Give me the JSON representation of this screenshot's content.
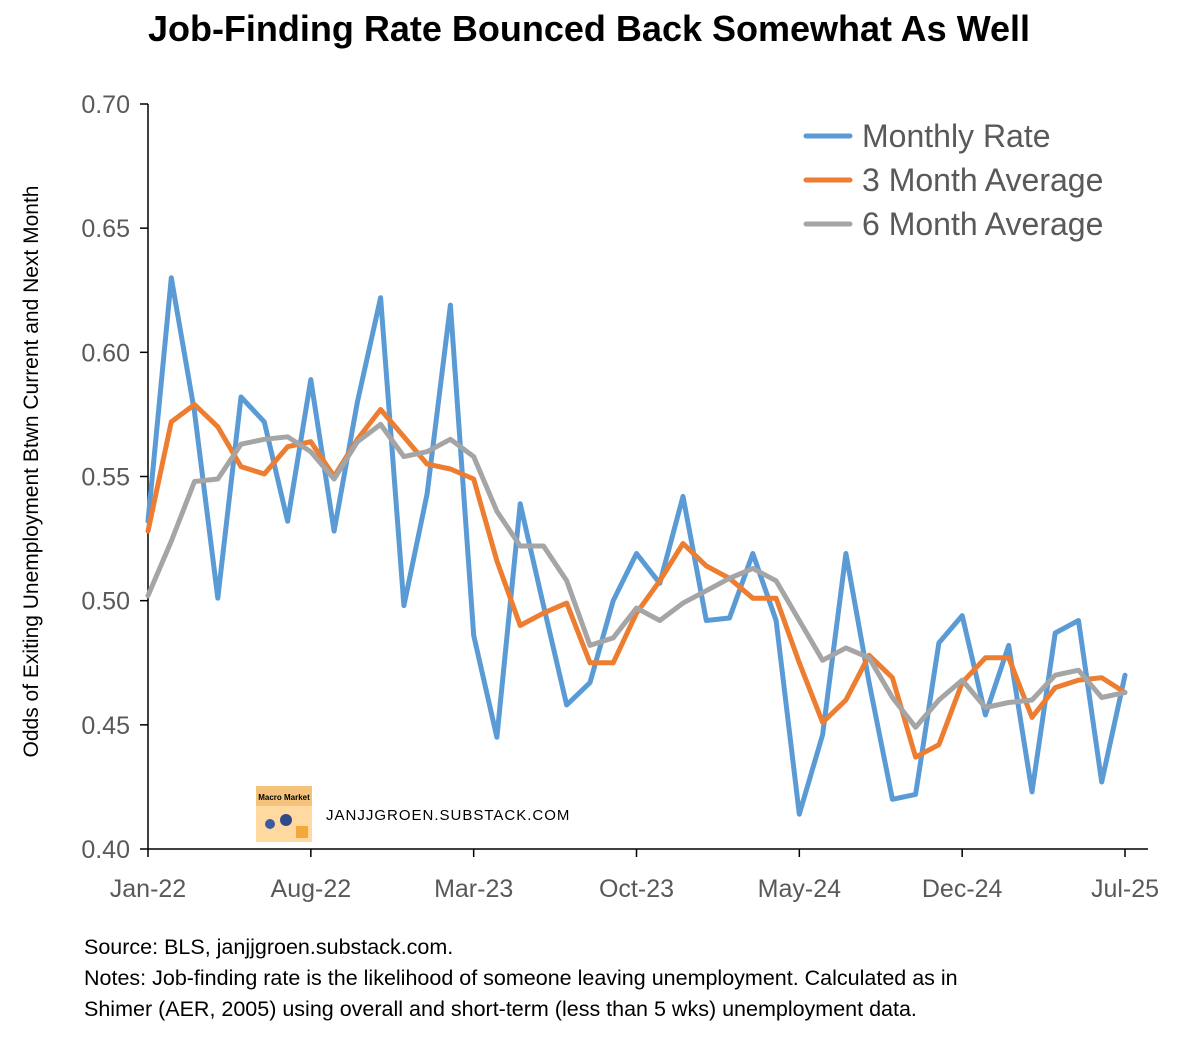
{
  "colors": {
    "monthly": "#5B9BD5",
    "avg3": "#ED7D31",
    "avg6": "#A5A5A5"
  },
  "watermark": {
    "text": "JANJJGROEN.SUBSTACK.COM",
    "logo_text": "Macro Market Notes"
  },
  "notes": {
    "source": "Source: BLS, janjjgroen.substack.com.",
    "line1": "Notes: Job-finding rate is the likelihood of someone leaving unemployment. Calculated as in",
    "line2": "Shimer (AER, 2005) using overall and short-term (less than 5 wks) unemployment data."
  },
  "chart_data": {
    "type": "line",
    "title": "Job-Finding Rate Bounced Back Somewhat As Well",
    "xlabel": "",
    "ylabel": "Odds of Exiting Unemployment Btwn Current and Next Month",
    "ylim": [
      0.4,
      0.7
    ],
    "y_ticks": [
      "0.40",
      "0.45",
      "0.50",
      "0.55",
      "0.60",
      "0.65",
      "0.70"
    ],
    "x_ticks": [
      {
        "index": 0,
        "label": "Jan-22"
      },
      {
        "index": 7,
        "label": "Aug-22"
      },
      {
        "index": 14,
        "label": "Mar-23"
      },
      {
        "index": 21,
        "label": "Oct-23"
      },
      {
        "index": 28,
        "label": "May-24"
      },
      {
        "index": 35,
        "label": "Dec-24"
      },
      {
        "index": 42,
        "label": "Jul-25"
      }
    ],
    "legend_position": "top-right",
    "x": [
      "Jan-22",
      "Feb-22",
      "Mar-22",
      "Apr-22",
      "May-22",
      "Jun-22",
      "Jul-22",
      "Aug-22",
      "Sep-22",
      "Oct-22",
      "Nov-22",
      "Dec-22",
      "Jan-23",
      "Feb-23",
      "Mar-23",
      "Apr-23",
      "May-23",
      "Jun-23",
      "Jul-23",
      "Aug-23",
      "Sep-23",
      "Oct-23",
      "Nov-23",
      "Dec-23",
      "Jan-24",
      "Feb-24",
      "Mar-24",
      "Apr-24",
      "May-24",
      "Jun-24",
      "Jul-24",
      "Aug-24",
      "Sep-24",
      "Oct-24",
      "Nov-24",
      "Dec-24",
      "Jan-25",
      "Feb-25",
      "Mar-25",
      "Apr-25",
      "May-25",
      "Jun-25",
      "Jul-25"
    ],
    "series": [
      {
        "name": "Monthly Rate",
        "color": "#5B9BD5",
        "values": [
          0.532,
          0.63,
          0.576,
          0.501,
          0.582,
          0.572,
          0.532,
          0.589,
          0.528,
          0.58,
          0.622,
          0.498,
          0.543,
          0.619,
          0.486,
          0.445,
          0.539,
          0.498,
          0.458,
          0.467,
          0.5,
          0.519,
          0.507,
          0.542,
          0.492,
          0.493,
          0.519,
          0.492,
          0.414,
          0.446,
          0.519,
          0.467,
          0.42,
          0.422,
          0.483,
          0.494,
          0.454,
          0.482,
          0.423,
          0.487,
          0.492,
          0.427,
          0.47
        ]
      },
      {
        "name": "3 Month Average",
        "color": "#ED7D31",
        "values": [
          0.528,
          0.572,
          0.579,
          0.57,
          0.554,
          0.551,
          0.562,
          0.564,
          0.55,
          0.565,
          0.577,
          0.566,
          0.555,
          0.553,
          0.549,
          0.516,
          0.49,
          0.495,
          0.499,
          0.475,
          0.475,
          0.495,
          0.508,
          0.523,
          0.514,
          0.509,
          0.501,
          0.501,
          0.475,
          0.451,
          0.46,
          0.478,
          0.469,
          0.437,
          0.442,
          0.467,
          0.477,
          0.477,
          0.453,
          0.465,
          0.468,
          0.469,
          0.463
        ]
      },
      {
        "name": "6 Month Average",
        "color": "#A5A5A5",
        "values": [
          0.502,
          0.524,
          0.548,
          0.549,
          0.563,
          0.565,
          0.566,
          0.56,
          0.549,
          0.564,
          0.571,
          0.558,
          0.56,
          0.565,
          0.558,
          0.536,
          0.522,
          0.522,
          0.508,
          0.482,
          0.485,
          0.497,
          0.492,
          0.499,
          0.504,
          0.509,
          0.513,
          0.508,
          0.492,
          0.476,
          0.481,
          0.477,
          0.461,
          0.449,
          0.46,
          0.468,
          0.457,
          0.459,
          0.46,
          0.47,
          0.472,
          0.461,
          0.463
        ]
      }
    ]
  }
}
